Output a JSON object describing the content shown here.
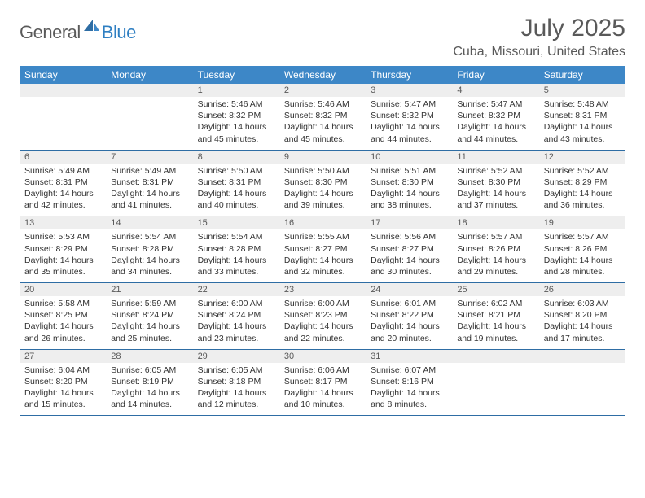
{
  "brand": {
    "text1": "General",
    "text2": "Blue"
  },
  "title": "July 2025",
  "subtitle": "Cuba, Missouri, United States",
  "colors": {
    "header_bg": "#3d87c7",
    "header_text": "#ffffff",
    "daynum_bg": "#eeeeee",
    "text_muted": "#595959",
    "rule": "#2e6da4",
    "brand_gray": "#5a5a5a",
    "brand_blue": "#2f7fc2"
  },
  "dow": [
    "Sunday",
    "Monday",
    "Tuesday",
    "Wednesday",
    "Thursday",
    "Friday",
    "Saturday"
  ],
  "weeks": [
    {
      "nums": [
        "",
        "",
        "1",
        "2",
        "3",
        "4",
        "5"
      ],
      "cells": [
        null,
        null,
        {
          "sr": "5:46 AM",
          "ss": "8:32 PM",
          "dl": "14 hours and 45 minutes."
        },
        {
          "sr": "5:46 AM",
          "ss": "8:32 PM",
          "dl": "14 hours and 45 minutes."
        },
        {
          "sr": "5:47 AM",
          "ss": "8:32 PM",
          "dl": "14 hours and 44 minutes."
        },
        {
          "sr": "5:47 AM",
          "ss": "8:32 PM",
          "dl": "14 hours and 44 minutes."
        },
        {
          "sr": "5:48 AM",
          "ss": "8:31 PM",
          "dl": "14 hours and 43 minutes."
        }
      ]
    },
    {
      "nums": [
        "6",
        "7",
        "8",
        "9",
        "10",
        "11",
        "12"
      ],
      "cells": [
        {
          "sr": "5:49 AM",
          "ss": "8:31 PM",
          "dl": "14 hours and 42 minutes."
        },
        {
          "sr": "5:49 AM",
          "ss": "8:31 PM",
          "dl": "14 hours and 41 minutes."
        },
        {
          "sr": "5:50 AM",
          "ss": "8:31 PM",
          "dl": "14 hours and 40 minutes."
        },
        {
          "sr": "5:50 AM",
          "ss": "8:30 PM",
          "dl": "14 hours and 39 minutes."
        },
        {
          "sr": "5:51 AM",
          "ss": "8:30 PM",
          "dl": "14 hours and 38 minutes."
        },
        {
          "sr": "5:52 AM",
          "ss": "8:30 PM",
          "dl": "14 hours and 37 minutes."
        },
        {
          "sr": "5:52 AM",
          "ss": "8:29 PM",
          "dl": "14 hours and 36 minutes."
        }
      ]
    },
    {
      "nums": [
        "13",
        "14",
        "15",
        "16",
        "17",
        "18",
        "19"
      ],
      "cells": [
        {
          "sr": "5:53 AM",
          "ss": "8:29 PM",
          "dl": "14 hours and 35 minutes."
        },
        {
          "sr": "5:54 AM",
          "ss": "8:28 PM",
          "dl": "14 hours and 34 minutes."
        },
        {
          "sr": "5:54 AM",
          "ss": "8:28 PM",
          "dl": "14 hours and 33 minutes."
        },
        {
          "sr": "5:55 AM",
          "ss": "8:27 PM",
          "dl": "14 hours and 32 minutes."
        },
        {
          "sr": "5:56 AM",
          "ss": "8:27 PM",
          "dl": "14 hours and 30 minutes."
        },
        {
          "sr": "5:57 AM",
          "ss": "8:26 PM",
          "dl": "14 hours and 29 minutes."
        },
        {
          "sr": "5:57 AM",
          "ss": "8:26 PM",
          "dl": "14 hours and 28 minutes."
        }
      ]
    },
    {
      "nums": [
        "20",
        "21",
        "22",
        "23",
        "24",
        "25",
        "26"
      ],
      "cells": [
        {
          "sr": "5:58 AM",
          "ss": "8:25 PM",
          "dl": "14 hours and 26 minutes."
        },
        {
          "sr": "5:59 AM",
          "ss": "8:24 PM",
          "dl": "14 hours and 25 minutes."
        },
        {
          "sr": "6:00 AM",
          "ss": "8:24 PM",
          "dl": "14 hours and 23 minutes."
        },
        {
          "sr": "6:00 AM",
          "ss": "8:23 PM",
          "dl": "14 hours and 22 minutes."
        },
        {
          "sr": "6:01 AM",
          "ss": "8:22 PM",
          "dl": "14 hours and 20 minutes."
        },
        {
          "sr": "6:02 AM",
          "ss": "8:21 PM",
          "dl": "14 hours and 19 minutes."
        },
        {
          "sr": "6:03 AM",
          "ss": "8:20 PM",
          "dl": "14 hours and 17 minutes."
        }
      ]
    },
    {
      "nums": [
        "27",
        "28",
        "29",
        "30",
        "31",
        "",
        ""
      ],
      "cells": [
        {
          "sr": "6:04 AM",
          "ss": "8:20 PM",
          "dl": "14 hours and 15 minutes."
        },
        {
          "sr": "6:05 AM",
          "ss": "8:19 PM",
          "dl": "14 hours and 14 minutes."
        },
        {
          "sr": "6:05 AM",
          "ss": "8:18 PM",
          "dl": "14 hours and 12 minutes."
        },
        {
          "sr": "6:06 AM",
          "ss": "8:17 PM",
          "dl": "14 hours and 10 minutes."
        },
        {
          "sr": "6:07 AM",
          "ss": "8:16 PM",
          "dl": "14 hours and 8 minutes."
        },
        null,
        null
      ]
    }
  ],
  "labels": {
    "sunrise": "Sunrise:",
    "sunset": "Sunset:",
    "daylight": "Daylight:"
  }
}
